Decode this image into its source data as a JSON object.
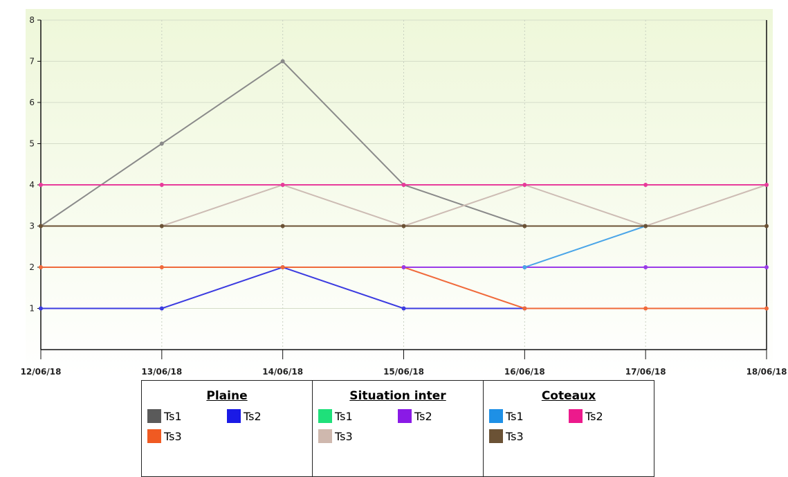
{
  "chart_data": {
    "type": "line",
    "categories": [
      "12/06/18",
      "13/06/18",
      "14/06/18",
      "15/06/18",
      "16/06/18",
      "17/06/18",
      "18/06/18"
    ],
    "ylim": [
      0,
      8
    ],
    "yticks": [
      1,
      2,
      3,
      4,
      5,
      6,
      7,
      8
    ],
    "grid": true,
    "legend_placement": "bottom",
    "plot_background": [
      "#eef7d9",
      "#ffffff"
    ],
    "series": [
      {
        "group": "Plaine",
        "name": "Ts1",
        "color": "#5a5a5a",
        "line_color": "#8a8a8a",
        "values": [
          3,
          5,
          7,
          4,
          3,
          null,
          null
        ]
      },
      {
        "group": "Plaine",
        "name": "Ts2",
        "color": "#1a1ae6",
        "line_color": "#3b3be0",
        "values": [
          1,
          1,
          2,
          1,
          1,
          null,
          null
        ]
      },
      {
        "group": "Plaine",
        "name": "Ts3",
        "color": "#f05a22",
        "line_color": "#f0693a",
        "values": [
          2,
          2,
          2,
          2,
          1,
          1,
          1
        ]
      },
      {
        "group": "Situation inter",
        "name": "Ts1",
        "color": "#1fe07a",
        "line_color": "#1fe07a",
        "values": [
          null,
          null,
          null,
          null,
          null,
          null,
          null
        ]
      },
      {
        "group": "Situation inter",
        "name": "Ts2",
        "color": "#8a1ae6",
        "line_color": "#9a3ae8",
        "values": [
          null,
          null,
          null,
          2,
          2,
          2,
          2
        ]
      },
      {
        "group": "Situation inter",
        "name": "Ts3",
        "color": "#cfb8ae",
        "line_color": "#cdbcb4",
        "values": [
          3,
          3,
          4,
          3,
          4,
          3,
          4
        ]
      },
      {
        "group": "Coteaux",
        "name": "Ts1",
        "color": "#1e90e6",
        "line_color": "#4aa5e8",
        "values": [
          null,
          null,
          null,
          null,
          2,
          3,
          null
        ]
      },
      {
        "group": "Coteaux",
        "name": "Ts2",
        "color": "#ec1a8c",
        "line_color": "#e83a9a",
        "values": [
          4,
          4,
          4,
          4,
          4,
          4,
          4
        ]
      },
      {
        "group": "Coteaux",
        "name": "Ts3",
        "color": "#6b5235",
        "line_color": "#6b5235",
        "values": [
          3,
          3,
          3,
          3,
          3,
          3,
          3
        ]
      }
    ]
  },
  "legend": {
    "groups": [
      {
        "title": "Plaine",
        "items": [
          {
            "label": "Ts1",
            "color": "#5a5a5a"
          },
          {
            "label": "Ts2",
            "color": "#1a1ae6"
          },
          {
            "label": "Ts3",
            "color": "#f05a22"
          }
        ]
      },
      {
        "title": "Situation inter",
        "items": [
          {
            "label": "Ts1",
            "color": "#1fe07a"
          },
          {
            "label": "Ts2",
            "color": "#8a1ae6"
          },
          {
            "label": "Ts3",
            "color": "#cfb8ae"
          }
        ]
      },
      {
        "title": "Coteaux",
        "items": [
          {
            "label": "Ts1",
            "color": "#1e90e6"
          },
          {
            "label": "Ts2",
            "color": "#ec1a8c"
          },
          {
            "label": "Ts3",
            "color": "#6b5235"
          }
        ]
      }
    ]
  }
}
